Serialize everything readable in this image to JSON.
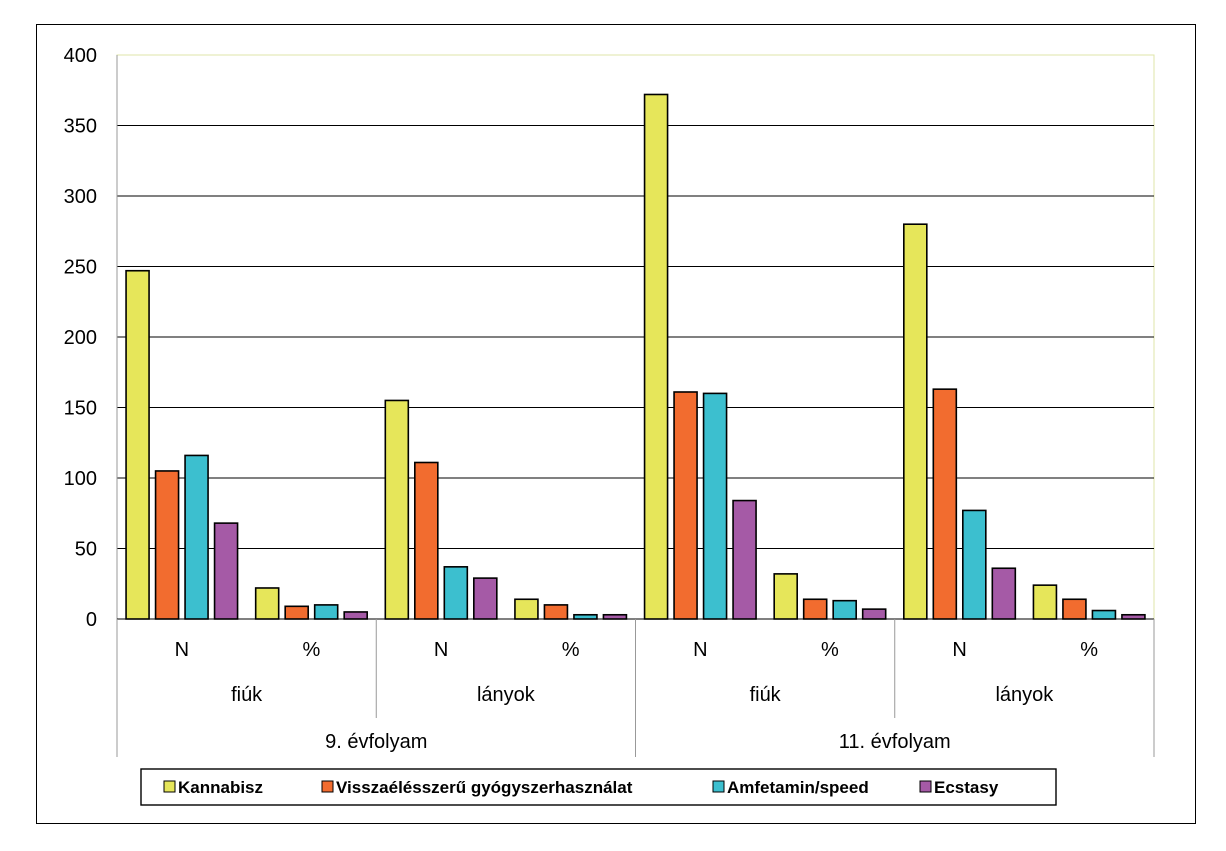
{
  "chart_data": {
    "type": "bar",
    "ylim": [
      0,
      400
    ],
    "yticks": [
      0,
      50,
      100,
      150,
      200,
      250,
      300,
      350,
      400
    ],
    "grid": true,
    "legend_position": "bottom",
    "level1_labels": [
      "N",
      "%",
      "N",
      "%",
      "N",
      "%",
      "N",
      "%"
    ],
    "level2_labels": [
      "fiúk",
      "lányok",
      "fiúk",
      "lányok"
    ],
    "level3_labels": [
      "9. évfolyam",
      "11. évfolyam"
    ],
    "series": [
      {
        "name": "Kannabisz",
        "color": "#e6e65a",
        "values": [
          247,
          22,
          155,
          14,
          372,
          32,
          280,
          24
        ]
      },
      {
        "name": "Visszaélésszerű gyógyszerhasználat",
        "color": "#f26c2f",
        "values": [
          105,
          9,
          111,
          10,
          161,
          14,
          163,
          14
        ]
      },
      {
        "name": "Amfetamin/speed",
        "color": "#3cbfcf",
        "values": [
          116,
          10,
          37,
          3,
          160,
          13,
          77,
          6
        ]
      },
      {
        "name": "Ecstasy",
        "color": "#a55aa6",
        "values": [
          68,
          5,
          29,
          3,
          84,
          7,
          36,
          3
        ]
      }
    ]
  }
}
